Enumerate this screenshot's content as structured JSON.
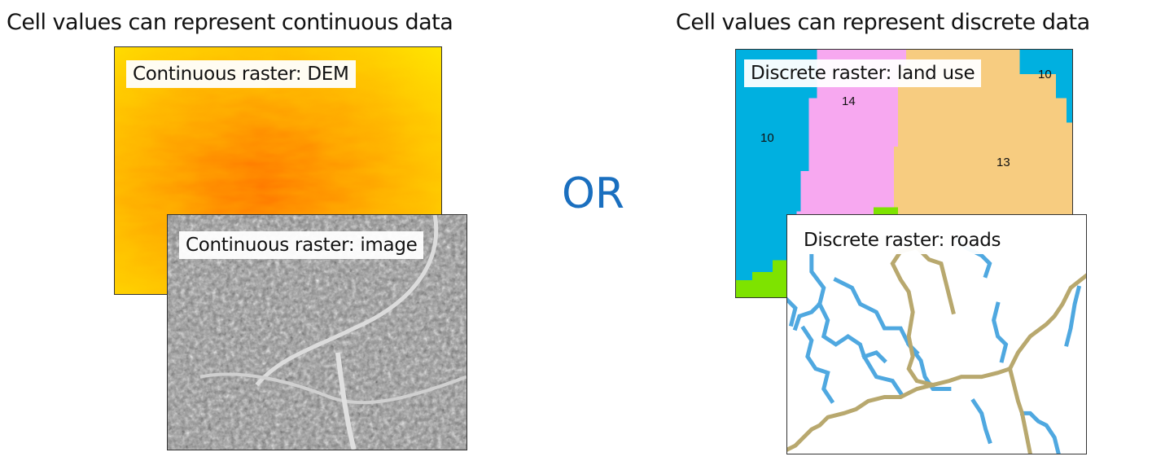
{
  "headings": {
    "left": "Cell values can represent continuous data",
    "right": "Cell values can represent discrete data"
  },
  "separator": "OR",
  "panels": {
    "dem": {
      "caption": "Continuous raster: DEM",
      "colors": [
        "#ffe600",
        "#ffb000",
        "#ff7a00"
      ]
    },
    "image": {
      "caption": "Continuous raster: image",
      "colors": [
        "#6b6b6b",
        "#bdbdbd",
        "#eeeeee"
      ]
    },
    "land_use": {
      "caption": "Discrete raster: land use",
      "labels": [
        "10",
        "14",
        "10",
        "13"
      ],
      "colors": {
        "water": "#00b0e0",
        "pink": "#f7a8f0",
        "tan": "#f7cc80",
        "green": "#7ee300"
      }
    },
    "roads": {
      "caption": "Discrete raster: roads",
      "colors": {
        "streams": "#4fa8e0",
        "roads": "#b8a86e"
      }
    }
  }
}
